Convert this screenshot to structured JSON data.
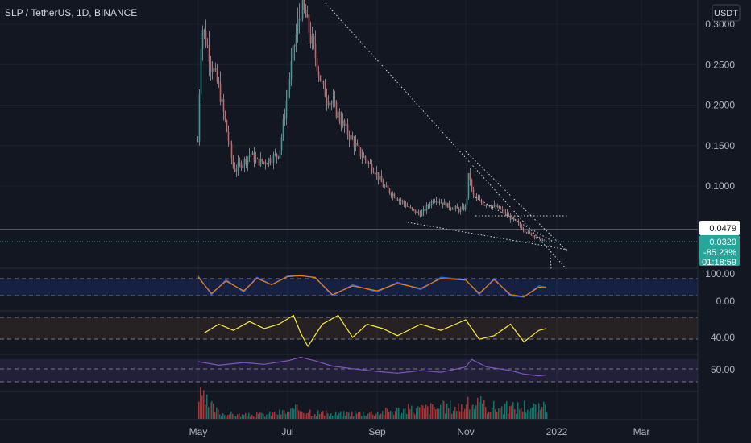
{
  "header": {
    "title": "SLP / TetherUS, 1D, BINANCE"
  },
  "price_scale": {
    "currency_button": "USDT"
  },
  "colors": {
    "background": "#131722",
    "grid": "#1e222d",
    "up": "#26a69a",
    "down": "#ef5350",
    "stoch_k": "#2962ff",
    "stoch_d": "#f57c00",
    "rsi": "#ffeb3b",
    "third_osc": "#7e57c2",
    "last_price": "#26a69a",
    "reference_label": "#ffffff"
  },
  "markers": {
    "reference_price": "0.0479",
    "last_price": "0.0320",
    "change_pct": "-85.23%",
    "countdown": "01:18:59"
  },
  "chart_data": [
    {
      "type": "candlestick",
      "title": "SLP / TetherUS, 1D, BINANCE",
      "y_tick_labels": [
        "0.3000",
        "0.2500",
        "0.2000",
        "0.1500",
        "0.1000"
      ],
      "ylim": [
        0.03,
        0.3
      ],
      "x_tick_labels": [
        "May",
        "Jul",
        "Sep",
        "Nov",
        "2022",
        "Mar"
      ],
      "grid": true,
      "legend": "none",
      "series": [
        {
          "x": [
            "2021-04-30",
            "2021-05-03",
            "2021-05-06",
            "2021-05-10",
            "2021-05-15",
            "2021-05-20",
            "2021-05-25",
            "2021-06-01",
            "2021-06-05",
            "2021-06-10",
            "2021-06-15",
            "2021-06-20",
            "2021-06-25",
            "2021-07-01",
            "2021-07-05",
            "2021-07-08",
            "2021-07-10",
            "2021-07-13",
            "2021-07-17",
            "2021-07-20",
            "2021-07-25",
            "2021-08-01",
            "2021-08-10",
            "2021-08-20",
            "2021-08-30",
            "2021-09-05",
            "2021-09-15",
            "2021-09-25",
            "2021-10-01",
            "2021-10-10",
            "2021-10-20",
            "2021-10-28",
            "2021-11-01",
            "2021-11-03",
            "2021-11-05",
            "2021-11-10",
            "2021-11-20",
            "2021-11-25",
            "2021-12-01",
            "2021-12-05",
            "2021-12-10",
            "2021-12-15",
            "2021-12-20",
            "2021-12-24"
          ],
          "values": [
            0.13,
            0.3,
            0.28,
            0.25,
            0.22,
            0.17,
            0.12,
            0.13,
            0.14,
            0.13,
            0.13,
            0.135,
            0.14,
            0.22,
            0.27,
            0.3,
            0.32,
            0.31,
            0.28,
            0.26,
            0.22,
            0.2,
            0.17,
            0.14,
            0.12,
            0.1,
            0.085,
            0.07,
            0.065,
            0.085,
            0.075,
            0.07,
            0.075,
            0.12,
            0.09,
            0.08,
            0.075,
            0.07,
            0.06,
            0.055,
            0.045,
            0.04,
            0.035,
            0.032
          ]
        }
      ]
    },
    {
      "type": "line",
      "title": "",
      "y_tick_labels": [
        "100.00",
        "0.00"
      ],
      "ylim": [
        0,
        100
      ],
      "grid": false,
      "legend": "none",
      "series": [
        {
          "x": [
            "2021-05-01",
            "2021-05-10",
            "2021-05-20",
            "2021-06-01",
            "2021-06-10",
            "2021-06-20",
            "2021-07-01",
            "2021-07-10",
            "2021-07-20",
            "2021-08-01",
            "2021-08-15",
            "2021-09-01",
            "2021-09-15",
            "2021-10-01",
            "2021-10-15",
            "2021-11-01",
            "2021-11-10",
            "2021-11-20",
            "2021-12-01",
            "2021-12-10",
            "2021-12-20",
            "2021-12-25"
          ],
          "values": [
            95,
            20,
            80,
            30,
            90,
            60,
            95,
            95,
            90,
            15,
            60,
            30,
            70,
            40,
            90,
            80,
            20,
            85,
            15,
            10,
            55,
            50
          ]
        },
        {
          "x": [
            "2021-05-01",
            "2021-05-10",
            "2021-05-20",
            "2021-06-01",
            "2021-06-10",
            "2021-06-20",
            "2021-07-01",
            "2021-07-10",
            "2021-07-20",
            "2021-08-01",
            "2021-08-15",
            "2021-09-01",
            "2021-09-15",
            "2021-10-01",
            "2021-10-15",
            "2021-11-01",
            "2021-11-10",
            "2021-11-20",
            "2021-12-01",
            "2021-12-10",
            "2021-12-20",
            "2021-12-25"
          ],
          "values": [
            90,
            25,
            75,
            35,
            85,
            60,
            92,
            96,
            88,
            20,
            55,
            35,
            65,
            45,
            85,
            78,
            25,
            80,
            20,
            12,
            50,
            48
          ]
        }
      ]
    },
    {
      "type": "line",
      "title": "",
      "y_tick_labels": [
        "40.00"
      ],
      "grid": false,
      "legend": "none",
      "series": [
        {
          "x": [
            "2021-05-05",
            "2021-05-15",
            "2021-05-25",
            "2021-06-05",
            "2021-06-15",
            "2021-06-25",
            "2021-07-05",
            "2021-07-10",
            "2021-07-15",
            "2021-07-25",
            "2021-08-05",
            "2021-08-15",
            "2021-08-25",
            "2021-09-05",
            "2021-09-15",
            "2021-10-01",
            "2021-10-15",
            "2021-10-25",
            "2021-11-01",
            "2021-11-10",
            "2021-11-20",
            "2021-12-01",
            "2021-12-10",
            "2021-12-20",
            "2021-12-25"
          ],
          "values": [
            45,
            55,
            48,
            58,
            50,
            55,
            65,
            45,
            30,
            55,
            65,
            40,
            55,
            50,
            42,
            55,
            48,
            55,
            60,
            38,
            42,
            55,
            35,
            48,
            50
          ]
        }
      ]
    },
    {
      "type": "line",
      "title": "",
      "y_tick_labels": [
        "50.00"
      ],
      "grid": false,
      "legend": "none",
      "series": [
        {
          "x": [
            "2021-05-01",
            "2021-05-15",
            "2021-06-01",
            "2021-06-15",
            "2021-07-01",
            "2021-07-10",
            "2021-07-20",
            "2021-08-01",
            "2021-08-15",
            "2021-09-01",
            "2021-09-15",
            "2021-10-01",
            "2021-10-15",
            "2021-11-01",
            "2021-11-05",
            "2021-11-15",
            "2021-12-01",
            "2021-12-10",
            "2021-12-20",
            "2021-12-25"
          ],
          "values": [
            70,
            62,
            68,
            64,
            72,
            80,
            72,
            60,
            54,
            48,
            44,
            50,
            46,
            58,
            75,
            58,
            50,
            42,
            38,
            40
          ]
        }
      ]
    },
    {
      "type": "bar",
      "title": "",
      "grid": false,
      "legend": "none",
      "categories": [
        "2021-05-01",
        "2021-05-15",
        "2021-06-01",
        "2021-06-15",
        "2021-07-01",
        "2021-07-10",
        "2021-07-20",
        "2021-08-01",
        "2021-08-15",
        "2021-09-01",
        "2021-09-15",
        "2021-10-01",
        "2021-10-15",
        "2021-11-01",
        "2021-11-05",
        "2021-11-15",
        "2021-12-01",
        "2021-12-10",
        "2021-12-20",
        "2021-12-25"
      ],
      "values": [
        30,
        8,
        5,
        6,
        10,
        14,
        9,
        6,
        8,
        9,
        12,
        14,
        16,
        18,
        22,
        17,
        15,
        18,
        14,
        16
      ]
    }
  ]
}
